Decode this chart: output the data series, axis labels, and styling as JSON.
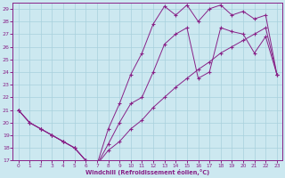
{
  "xlabel": "Windchill (Refroidissement éolien,°C)",
  "bg_color": "#cce8f0",
  "grid_color": "#a8d0dc",
  "line_color": "#882288",
  "xlim": [
    -0.5,
    23.5
  ],
  "ylim": [
    17,
    29.5
  ],
  "xticks": [
    0,
    1,
    2,
    3,
    4,
    5,
    6,
    7,
    8,
    9,
    10,
    11,
    12,
    13,
    14,
    15,
    16,
    17,
    18,
    19,
    20,
    21,
    22,
    23
  ],
  "yticks": [
    17,
    18,
    19,
    20,
    21,
    22,
    23,
    24,
    25,
    26,
    27,
    28,
    29
  ],
  "line_upper_x": [
    0,
    1,
    2,
    3,
    4,
    5,
    6,
    7,
    8,
    9,
    10,
    11,
    12,
    13,
    14,
    15,
    16,
    17,
    18,
    19,
    20,
    21,
    22,
    23
  ],
  "line_upper_y": [
    21.0,
    20.0,
    19.5,
    19.0,
    18.5,
    18.0,
    17.0,
    16.7,
    19.5,
    21.5,
    23.8,
    25.5,
    27.8,
    29.2,
    28.5,
    29.3,
    28.0,
    29.0,
    29.3,
    28.5,
    28.8,
    28.2,
    28.5,
    23.8
  ],
  "line_mid_x": [
    0,
    1,
    2,
    3,
    4,
    5,
    6,
    7,
    8,
    9,
    10,
    11,
    12,
    13,
    14,
    15,
    16,
    17,
    18,
    19,
    20,
    21,
    22,
    23
  ],
  "line_mid_y": [
    21.0,
    20.0,
    19.5,
    19.0,
    18.5,
    18.0,
    17.0,
    16.7,
    18.3,
    20.0,
    21.5,
    22.0,
    24.0,
    26.2,
    27.0,
    27.5,
    23.5,
    24.0,
    27.5,
    27.2,
    27.0,
    25.5,
    26.8,
    23.8
  ],
  "line_low_x": [
    0,
    1,
    2,
    3,
    4,
    5,
    6,
    7,
    8,
    9,
    10,
    11,
    12,
    13,
    14,
    15,
    16,
    17,
    18,
    19,
    20,
    21,
    22,
    23
  ],
  "line_low_y": [
    21.0,
    20.0,
    19.5,
    19.0,
    18.5,
    18.0,
    17.0,
    16.7,
    17.8,
    18.5,
    19.5,
    20.2,
    21.2,
    22.0,
    22.8,
    23.5,
    24.2,
    24.8,
    25.5,
    26.0,
    26.5,
    27.0,
    27.5,
    23.8
  ]
}
